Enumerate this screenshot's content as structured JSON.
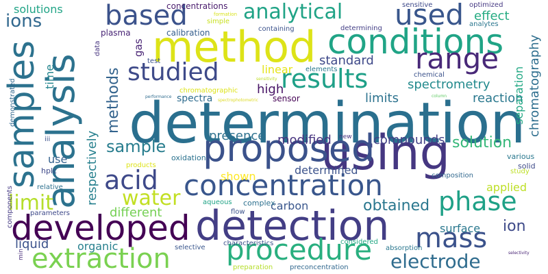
{
  "background": "#ffffff",
  "words": [
    {
      "text": "determination",
      "color": "#2a6f8e"
    },
    {
      "text": "method",
      "color": "#dde318"
    },
    {
      "text": "using",
      "color": "#453781"
    },
    {
      "text": "analysis",
      "color": "#2c728e"
    },
    {
      "text": "samples",
      "color": "#2c728e"
    },
    {
      "text": "detection",
      "color": "#433e85"
    },
    {
      "text": "proposed",
      "color": "#3b528b"
    },
    {
      "text": "developed",
      "color": "#440154"
    },
    {
      "text": "conditions",
      "color": "#20a486"
    },
    {
      "text": "concentration",
      "color": "#39568c"
    },
    {
      "text": "extraction",
      "color": "#7ad151"
    },
    {
      "text": "procedure",
      "color": "#29af7f"
    },
    {
      "text": "based",
      "color": "#3b528b"
    },
    {
      "text": "used",
      "color": "#39568c"
    },
    {
      "text": "range",
      "color": "#482878"
    },
    {
      "text": "studied",
      "color": "#3e4a89"
    },
    {
      "text": "results",
      "color": "#1fa088"
    },
    {
      "text": "analytical",
      "color": "#20a386"
    },
    {
      "text": "mass",
      "color": "#3b528b"
    },
    {
      "text": "phase",
      "color": "#1fa187"
    },
    {
      "text": "acid",
      "color": "#3e4989"
    },
    {
      "text": "water",
      "color": "#c2df23"
    },
    {
      "text": "limit",
      "color": "#b5de2b"
    },
    {
      "text": "electrode",
      "color": "#2f6c8e"
    },
    {
      "text": "ions",
      "color": "#31688e"
    },
    {
      "text": "sample",
      "color": "#287d8e"
    },
    {
      "text": "methods",
      "color": "#33638d"
    },
    {
      "text": "solution",
      "color": "#35b779"
    },
    {
      "text": "obtained",
      "color": "#2a778e"
    },
    {
      "text": "chromatography",
      "color": "#2e6e8e"
    },
    {
      "text": "respectively",
      "color": "#27808e"
    },
    {
      "text": "spectrometry",
      "color": "#238a8d"
    },
    {
      "text": "standard",
      "color": "#3e4989"
    },
    {
      "text": "reaction",
      "color": "#2a788e"
    },
    {
      "text": "separation",
      "color": "#22a884"
    },
    {
      "text": "presence",
      "color": "#2d718e"
    },
    {
      "text": "compounds",
      "color": "#424086"
    },
    {
      "text": "modified",
      "color": "#46327e"
    },
    {
      "text": "high",
      "color": "#471365"
    },
    {
      "text": "limits",
      "color": "#2c728e"
    },
    {
      "text": "linear",
      "color": "#e5e419"
    },
    {
      "text": "effect",
      "color": "#25ab82"
    },
    {
      "text": "determined",
      "color": "#3b528b"
    },
    {
      "text": "shown",
      "color": "#fde725"
    },
    {
      "text": "applied",
      "color": "#bddf26"
    },
    {
      "text": "different",
      "color": "#75d054"
    },
    {
      "text": "liquid",
      "color": "#3b528b"
    },
    {
      "text": "organic",
      "color": "#27808e"
    },
    {
      "text": "carbon",
      "color": "#39568c"
    },
    {
      "text": "ion",
      "color": "#3e4a89"
    },
    {
      "text": "surface",
      "color": "#2a788e"
    },
    {
      "text": "solutions",
      "color": "#20a486"
    },
    {
      "text": "time",
      "color": "#25858e"
    },
    {
      "text": "gas",
      "color": "#482374"
    },
    {
      "text": "use",
      "color": "#34618d"
    },
    {
      "text": "spectra",
      "color": "#2f6c8e"
    },
    {
      "text": "sensor",
      "color": "#440154"
    },
    {
      "text": "plasma",
      "color": "#482475"
    },
    {
      "text": "calibration",
      "color": "#355e8d"
    },
    {
      "text": "concentrations",
      "color": "#481a6c"
    },
    {
      "text": "containing",
      "color": "#3b528b"
    },
    {
      "text": "determining",
      "color": "#433e85"
    },
    {
      "text": "sensitive",
      "color": "#3e4989"
    },
    {
      "text": "optimized",
      "color": "#453882"
    },
    {
      "text": "analytes",
      "color": "#2a768e"
    },
    {
      "text": "chemical",
      "color": "#3b528b"
    },
    {
      "text": "elements",
      "color": "#2a788e"
    },
    {
      "text": "chromatographic",
      "color": "#dde318"
    },
    {
      "text": "test",
      "color": "#3b528b"
    },
    {
      "text": "simple",
      "color": "#c8e020"
    },
    {
      "text": "data",
      "color": "#46337f"
    },
    {
      "text": "formation",
      "color": "#d8e219"
    },
    {
      "text": "sensitivity",
      "color": "#c0df25"
    },
    {
      "text": "spectrophotometric",
      "color": "#ddda24"
    },
    {
      "text": "performance",
      "color": "#2f6c8e"
    },
    {
      "text": "column",
      "color": "#5ec962"
    },
    {
      "text": "demonstrated",
      "color": "#31688e"
    },
    {
      "text": "iii",
      "color": "#3b528b"
    },
    {
      "text": "hplc",
      "color": "#3e4989"
    },
    {
      "text": "new",
      "color": "#46327e"
    },
    {
      "text": "products",
      "color": "#dde318"
    },
    {
      "text": "oxidation",
      "color": "#2c728e"
    },
    {
      "text": "various",
      "color": "#2a788e"
    },
    {
      "text": "solid",
      "color": "#3e4a89"
    },
    {
      "text": "composition",
      "color": "#31688e"
    },
    {
      "text": "study",
      "color": "#bddf26"
    },
    {
      "text": "relative",
      "color": "#2d708e"
    },
    {
      "text": "components",
      "color": "#443983"
    },
    {
      "text": "aqueous",
      "color": "#20a386"
    },
    {
      "text": "complex",
      "color": "#2d708e"
    },
    {
      "text": "parameters",
      "color": "#3e4989"
    },
    {
      "text": "flow",
      "color": "#3b528b"
    },
    {
      "text": "considered",
      "color": "#22a884"
    },
    {
      "text": "selective",
      "color": "#39568c"
    },
    {
      "text": "characteristics",
      "color": "#3b528b"
    },
    {
      "text": "absorption",
      "color": "#2a778e"
    },
    {
      "text": "min",
      "color": "#472d7b"
    },
    {
      "text": "preparation",
      "color": "#b5de2b"
    },
    {
      "text": "preconcentration",
      "color": "#31688e"
    },
    {
      "text": "selectivity",
      "color": "#482475"
    }
  ]
}
